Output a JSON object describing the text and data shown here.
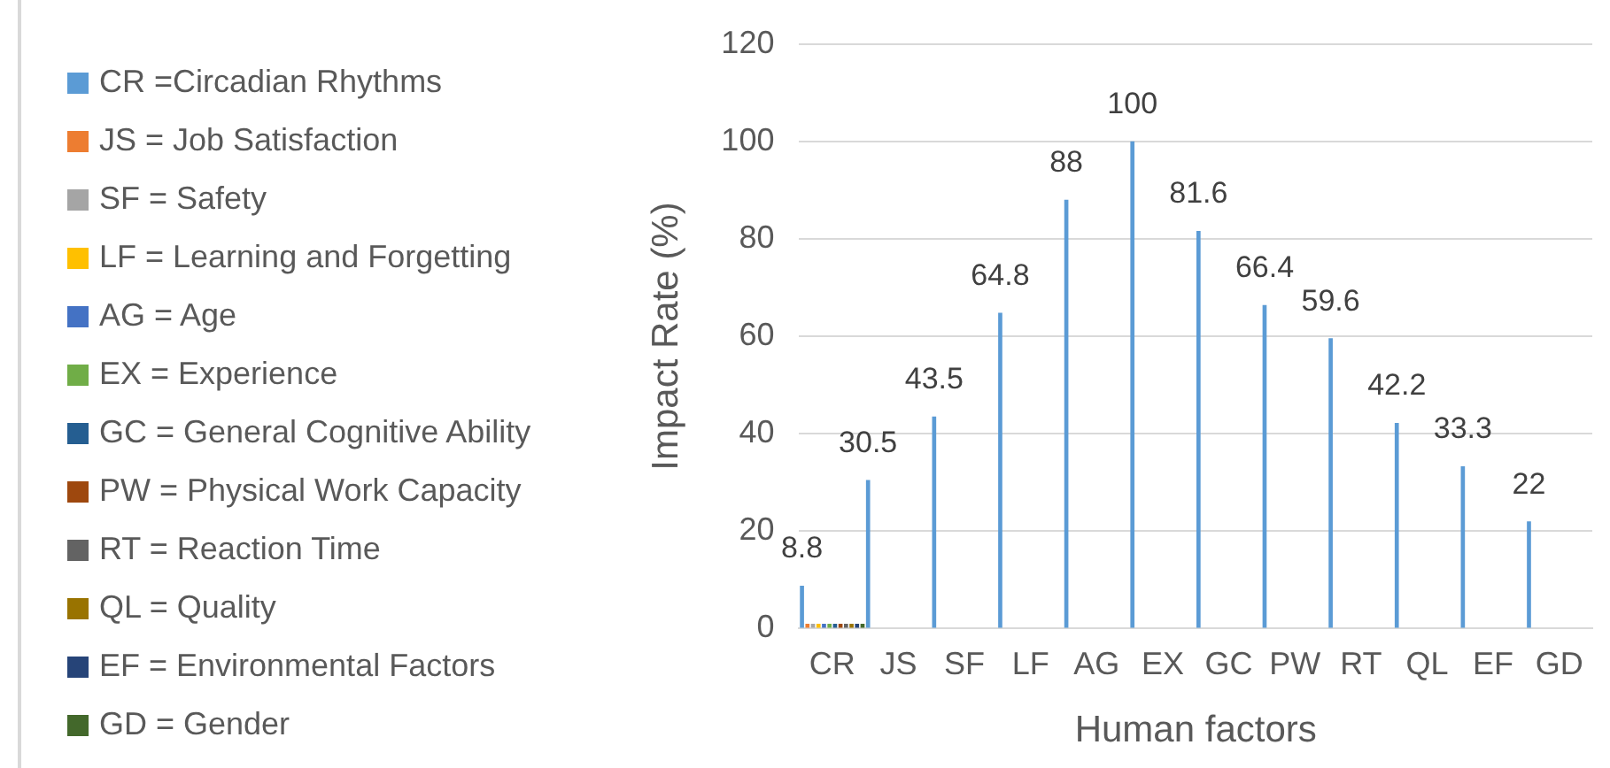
{
  "chart_data": {
    "type": "bar",
    "xlabel": "Human factors",
    "ylabel": "Impact Rate (%)",
    "categories": [
      "CR",
      "JS",
      "SF",
      "LF",
      "AG",
      "EX",
      "GC",
      "PW",
      "RT",
      "QL",
      "EF",
      "GD"
    ],
    "series": [
      {
        "name": "CR =Circadian Rhythms",
        "color": "#5b9bd5",
        "values": [
          8.8,
          30.5,
          43.5,
          64.8,
          88,
          100,
          81.6,
          66.4,
          59.6,
          42.2,
          33.3,
          22
        ],
        "value_labels": [
          "8.8",
          "30.5",
          "43.5",
          "64.8",
          "88",
          "100",
          "81.6",
          "66.4",
          "59.6",
          "42.2",
          "33.3",
          "22"
        ]
      },
      {
        "name": "JS = Job Satisfaction",
        "color": "#ed7d31",
        "values": [
          1,
          null,
          null,
          null,
          null,
          null,
          null,
          null,
          null,
          null,
          null,
          null
        ]
      },
      {
        "name": "SF = Safety",
        "color": "#a5a5a5",
        "values": [
          1,
          null,
          null,
          null,
          null,
          null,
          null,
          null,
          null,
          null,
          null,
          null
        ]
      },
      {
        "name": "LF = Learning and Forgetting",
        "color": "#ffc000",
        "values": [
          1,
          null,
          null,
          null,
          null,
          null,
          null,
          null,
          null,
          null,
          null,
          null
        ]
      },
      {
        "name": "AG = Age",
        "color": "#4472c4",
        "values": [
          1,
          null,
          null,
          null,
          null,
          null,
          null,
          null,
          null,
          null,
          null,
          null
        ]
      },
      {
        "name": "EX = Experience",
        "color": "#70ad47",
        "values": [
          1,
          null,
          null,
          null,
          null,
          null,
          null,
          null,
          null,
          null,
          null,
          null
        ]
      },
      {
        "name": "GC = General Cognitive Ability",
        "color": "#255e91",
        "values": [
          1,
          null,
          null,
          null,
          null,
          null,
          null,
          null,
          null,
          null,
          null,
          null
        ]
      },
      {
        "name": "PW = Physical Work Capacity",
        "color": "#9e480e",
        "values": [
          1,
          null,
          null,
          null,
          null,
          null,
          null,
          null,
          null,
          null,
          null,
          null
        ]
      },
      {
        "name": "RT = Reaction Time",
        "color": "#636363",
        "values": [
          1,
          null,
          null,
          null,
          null,
          null,
          null,
          null,
          null,
          null,
          null,
          null
        ]
      },
      {
        "name": "QL = Quality",
        "color": "#997300",
        "values": [
          1,
          null,
          null,
          null,
          null,
          null,
          null,
          null,
          null,
          null,
          null,
          null
        ]
      },
      {
        "name": "EF = Environmental Factors",
        "color": "#264478",
        "values": [
          1,
          null,
          null,
          null,
          null,
          null,
          null,
          null,
          null,
          null,
          null,
          null
        ]
      },
      {
        "name": "GD = Gender",
        "color": "#43682b",
        "values": [
          1,
          null,
          null,
          null,
          null,
          null,
          null,
          null,
          null,
          null,
          null,
          null
        ]
      }
    ],
    "ylim": [
      0,
      120
    ],
    "yticks": [
      0,
      20,
      40,
      60,
      80,
      100,
      120
    ],
    "grid": "y",
    "legend": "left"
  }
}
